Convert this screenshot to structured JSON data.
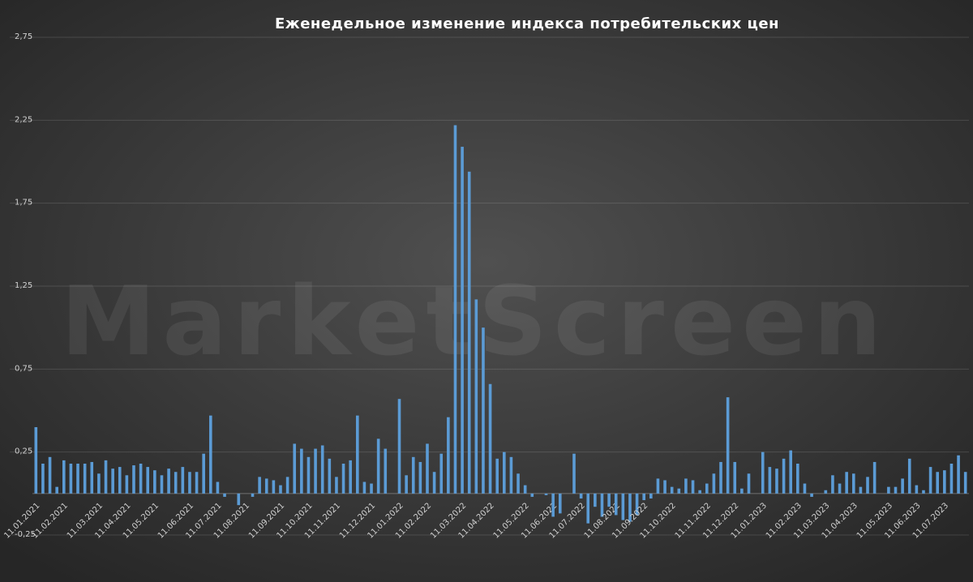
{
  "chart_data": {
    "type": "bar",
    "title": "Еженедельное изменение индекса потребительских цен",
    "watermark": "MarketScreen",
    "color": "#5b9bd5",
    "grid": true,
    "ylim": [
      -0.25,
      2.75
    ],
    "yticks": [
      {
        "value": -0.25,
        "label": "-0,25"
      },
      {
        "value": 0.25,
        "label": "0,25"
      },
      {
        "value": 0.75,
        "label": "0,75"
      },
      {
        "value": 1.25,
        "label": "1,25"
      },
      {
        "value": 1.75,
        "label": "1,75"
      },
      {
        "value": 2.25,
        "label": "2,25"
      },
      {
        "value": 2.75,
        "label": "2,75"
      }
    ],
    "categories": [
      "11.01.2021",
      null,
      null,
      null,
      "11.02.2021",
      null,
      null,
      null,
      null,
      "11.03.2021",
      null,
      null,
      null,
      "11.04.2021",
      null,
      null,
      null,
      "11.05.2021",
      null,
      null,
      null,
      null,
      "11.06.2021",
      null,
      null,
      null,
      "11.07.2021",
      null,
      null,
      null,
      "11.08.2021",
      null,
      null,
      null,
      null,
      "11.09.2021",
      null,
      null,
      null,
      "11.10.2021",
      null,
      null,
      null,
      "11.11.2021",
      null,
      null,
      null,
      null,
      "11.12.2021",
      null,
      null,
      null,
      "11.01.2022",
      null,
      null,
      null,
      "11.02.2022",
      null,
      null,
      null,
      null,
      "11.03.2022",
      null,
      null,
      null,
      "11.04.2022",
      null,
      null,
      null,
      null,
      "11.05.2022",
      null,
      null,
      null,
      "11.06.2022",
      null,
      null,
      null,
      "11.07.2022",
      null,
      null,
      null,
      null,
      "11.08.2022",
      null,
      null,
      null,
      "11.09.2022",
      null,
      null,
      null,
      "11.10.2022",
      null,
      null,
      null,
      null,
      "11.11.2022",
      null,
      null,
      null,
      "11.12.2022",
      null,
      null,
      null,
      "11.01.2023",
      null,
      null,
      null,
      null,
      "11.02.2023",
      null,
      null,
      null,
      "11.03.2023",
      null,
      null,
      null,
      "11.04.2023",
      null,
      null,
      null,
      null,
      "11.05.2023",
      null,
      null,
      null,
      "11.06.2023",
      null,
      null,
      null,
      "11.07.2023",
      null,
      null,
      null
    ],
    "values": [
      0.4,
      0.18,
      0.22,
      0.04,
      0.2,
      0.18,
      0.18,
      0.18,
      0.19,
      0.12,
      0.2,
      0.15,
      0.16,
      0.11,
      0.17,
      0.18,
      0.16,
      0.14,
      0.11,
      0.15,
      0.13,
      0.16,
      0.13,
      0.13,
      0.24,
      0.47,
      0.07,
      -0.02,
      0,
      -0.07,
      0,
      -0.02,
      0.1,
      0.09,
      0.08,
      0.05,
      0.1,
      0.3,
      0.27,
      0.22,
      0.27,
      0.29,
      0.21,
      0.1,
      0.18,
      0.2,
      0.47,
      0.07,
      0.06,
      0.33,
      0.27,
      0,
      0.57,
      0.11,
      0.22,
      0.19,
      0.3,
      0.13,
      0.24,
      0.46,
      2.22,
      2.09,
      1.94,
      1.17,
      1.0,
      0.66,
      0.21,
      0.25,
      0.22,
      0.12,
      0.05,
      -0.02,
      0,
      -0.01,
      -0.14,
      -0.12,
      0,
      0.24,
      -0.03,
      -0.18,
      -0.08,
      -0.14,
      -0.08,
      -0.13,
      -0.16,
      -0.17,
      -0.13,
      -0.04,
      -0.03,
      0.09,
      0.08,
      0.04,
      0.03,
      0.09,
      0.08,
      0.02,
      0.06,
      0.12,
      0.19,
      0.58,
      0.19,
      0.03,
      0.12,
      0,
      0.25,
      0.16,
      0.15,
      0.21,
      0.26,
      0.18,
      0.06,
      -0.02,
      0,
      0.02,
      0.11,
      0.06,
      0.13,
      0.12,
      0.04,
      0.1,
      0.19,
      0,
      0.04,
      0.04,
      0.09,
      0.21,
      0.05,
      0.02,
      0.16,
      0.13,
      0.14,
      0.18,
      0.23,
      0.13
    ]
  }
}
